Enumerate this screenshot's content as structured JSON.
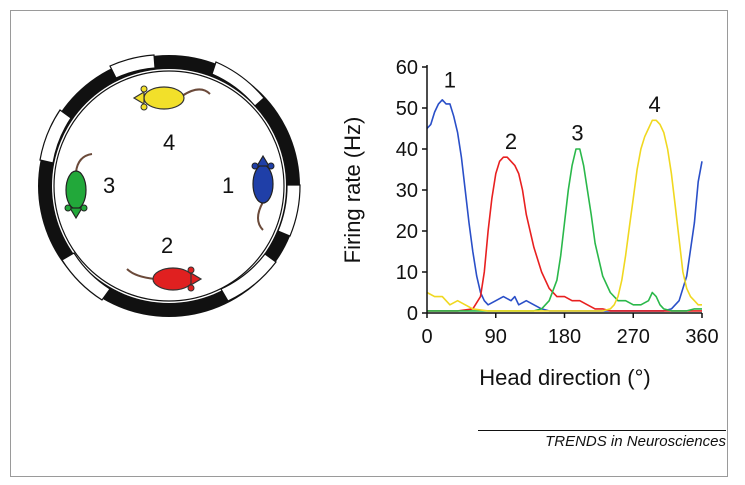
{
  "arena": {
    "mice": [
      {
        "label": "1",
        "color": "#1f3fa8",
        "heading_deg": 0
      },
      {
        "label": "2",
        "color": "#e02020",
        "heading_deg": 90
      },
      {
        "label": "3",
        "color": "#22a83a",
        "heading_deg": 180
      },
      {
        "label": "4",
        "color": "#f2e02a",
        "heading_deg": 270
      }
    ]
  },
  "chart_data": {
    "type": "line",
    "xlabel": "Head direction (°)",
    "ylabel": "Firing rate (Hz)",
    "xlim": [
      0,
      360
    ],
    "ylim": [
      0,
      60
    ],
    "xticks": [
      "0",
      "90",
      "180",
      "270",
      "360"
    ],
    "yticks": [
      "0",
      "10",
      "20",
      "30",
      "40",
      "50",
      "60"
    ],
    "grid": false,
    "series": [
      {
        "name": "1",
        "color": "#2a4fc8",
        "peak_label": "1",
        "peak_label_x": 30,
        "peak_label_y": 57,
        "x": [
          0,
          5,
          10,
          15,
          20,
          25,
          30,
          35,
          40,
          45,
          50,
          55,
          60,
          65,
          70,
          75,
          80,
          90,
          100,
          110,
          115,
          120,
          130,
          140,
          150,
          160,
          180,
          200,
          220,
          240,
          260,
          280,
          300,
          310,
          320,
          330,
          340,
          350,
          355,
          360
        ],
        "y": [
          45,
          46,
          49,
          51,
          52,
          51,
          51,
          48,
          44,
          38,
          30,
          22,
          15,
          9,
          5,
          3,
          2,
          3,
          4,
          3,
          4,
          2,
          3,
          2,
          1,
          0.5,
          0.5,
          0.5,
          0.5,
          0.5,
          0.5,
          0.5,
          0.5,
          0.5,
          1,
          3,
          9,
          22,
          32,
          37
        ]
      },
      {
        "name": "2",
        "color": "#e82020",
        "peak_label": "2",
        "peak_label_x": 110,
        "peak_label_y": 42,
        "x": [
          0,
          20,
          40,
          60,
          70,
          75,
          80,
          85,
          90,
          95,
          100,
          105,
          110,
          115,
          120,
          125,
          130,
          140,
          150,
          160,
          170,
          180,
          190,
          200,
          210,
          220,
          230,
          240,
          260,
          300,
          360
        ],
        "y": [
          0.5,
          0.5,
          0.5,
          1,
          4,
          10,
          20,
          28,
          34,
          37,
          38,
          38,
          37,
          36,
          34,
          30,
          24,
          16,
          10,
          6,
          4,
          4,
          3,
          3,
          2,
          1,
          1,
          0.5,
          0.5,
          0.5,
          0.5
        ]
      },
      {
        "name": "3",
        "color": "#2ab84a",
        "peak_label": "3",
        "peak_label_x": 197,
        "peak_label_y": 44,
        "x": [
          0,
          100,
          140,
          150,
          160,
          170,
          175,
          180,
          185,
          190,
          195,
          200,
          205,
          210,
          215,
          220,
          230,
          240,
          250,
          260,
          270,
          280,
          290,
          295,
          300,
          305,
          310,
          320,
          330,
          340,
          350,
          360
        ],
        "y": [
          0.5,
          0.5,
          0.5,
          1,
          3,
          8,
          14,
          22,
          30,
          36,
          40,
          40,
          36,
          30,
          24,
          17,
          9,
          5,
          3,
          3,
          2,
          2,
          3,
          5,
          4,
          2,
          1,
          0.5,
          0.5,
          0.5,
          1,
          1
        ]
      },
      {
        "name": "4",
        "color": "#f0d820",
        "peak_label": "4",
        "peak_label_x": 298,
        "peak_label_y": 51,
        "x": [
          0,
          10,
          20,
          30,
          40,
          50,
          60,
          80,
          200,
          230,
          240,
          245,
          250,
          255,
          260,
          265,
          270,
          275,
          280,
          285,
          290,
          295,
          300,
          305,
          310,
          315,
          320,
          325,
          330,
          335,
          340,
          345,
          350,
          355,
          360
        ],
        "y": [
          5,
          4,
          4,
          2,
          3,
          2,
          1,
          0.5,
          0.5,
          0.5,
          1,
          2,
          4,
          8,
          14,
          21,
          28,
          35,
          40,
          43,
          45,
          47,
          47,
          46,
          44,
          40,
          34,
          26,
          18,
          10,
          6,
          4,
          3,
          2,
          2
        ]
      }
    ]
  },
  "credit": "TRENDS in Neurosciences"
}
